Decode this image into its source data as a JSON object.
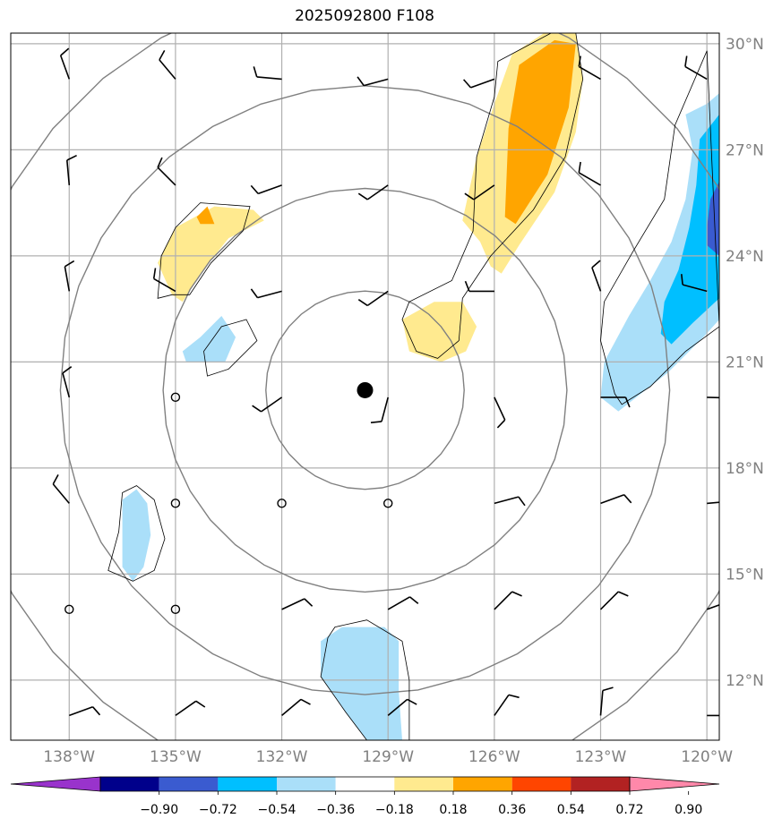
{
  "title": "2025092800 F108",
  "map": {
    "lon_range": [
      -139.65,
      -119.65
    ],
    "lat_range": [
      10.3,
      30.3
    ],
    "lon_ticks": [
      {
        "value": -138,
        "label": "138°W"
      },
      {
        "value": -135,
        "label": "135°W"
      },
      {
        "value": -132,
        "label": "132°W"
      },
      {
        "value": -129,
        "label": "129°W"
      },
      {
        "value": -126,
        "label": "126°W"
      },
      {
        "value": -123,
        "label": "123°W"
      },
      {
        "value": -120,
        "label": "120°W"
      }
    ],
    "lat_ticks": [
      {
        "value": 12,
        "label": "12°N"
      },
      {
        "value": 15,
        "label": "15°N"
      },
      {
        "value": 18,
        "label": "18°N"
      },
      {
        "value": 21,
        "label": "21°N"
      },
      {
        "value": 24,
        "label": "24°N"
      },
      {
        "value": 27,
        "label": "27°N"
      },
      {
        "value": 30,
        "label": "30°N"
      }
    ],
    "grid": true,
    "center": {
      "lon": -129.65,
      "lat": 20.2
    },
    "range_ring_radii_deg": [
      2.8,
      5.7,
      8.6,
      11.5
    ],
    "colors": {
      "grid": "#b0b0b0",
      "ring": "#808080",
      "frame": "#000000"
    }
  },
  "shaded_regions": [
    {
      "color": "#ffea8f",
      "points": [
        [
          -125.5,
          29.7
        ],
        [
          -124.6,
          30.3
        ],
        [
          -123.7,
          30.3
        ],
        [
          -123.5,
          29.0
        ],
        [
          -123.7,
          27.5
        ],
        [
          -124.3,
          25.8
        ],
        [
          -125.3,
          24.3
        ],
        [
          -125.8,
          23.5
        ],
        [
          -126.1,
          23.7
        ],
        [
          -126.4,
          24.4
        ],
        [
          -126.9,
          25.0
        ],
        [
          -126.5,
          26.8
        ],
        [
          -126.0,
          28.3
        ]
      ]
    },
    {
      "color": "#ffa500",
      "points": [
        [
          -125.3,
          29.4
        ],
        [
          -124.3,
          30.1
        ],
        [
          -123.7,
          30.0
        ],
        [
          -123.9,
          28.2
        ],
        [
          -124.5,
          26.3
        ],
        [
          -125.4,
          24.9
        ],
        [
          -125.7,
          25.1
        ],
        [
          -125.6,
          27.6
        ]
      ]
    },
    {
      "color": "#ffea8f",
      "points": [
        [
          -127.7,
          22.7
        ],
        [
          -126.9,
          22.7
        ],
        [
          -126.5,
          22.0
        ],
        [
          -126.8,
          21.3
        ],
        [
          -127.5,
          21.0
        ],
        [
          -128.4,
          21.3
        ],
        [
          -128.6,
          22.2
        ]
      ]
    },
    {
      "color": "#ffea8f",
      "points": [
        [
          -133.9,
          25.4
        ],
        [
          -132.8,
          25.3
        ],
        [
          -132.5,
          25.0
        ],
        [
          -133.5,
          24.5
        ],
        [
          -134.3,
          23.5
        ],
        [
          -134.8,
          22.7
        ],
        [
          -135.1,
          22.9
        ],
        [
          -135.5,
          23.8
        ],
        [
          -135.0,
          24.8
        ]
      ]
    },
    {
      "color": "#ffa500",
      "points": [
        [
          -134.1,
          25.4
        ],
        [
          -133.9,
          24.9
        ],
        [
          -134.3,
          24.9
        ],
        [
          -134.4,
          25.1
        ]
      ]
    },
    {
      "color": "#aadff9",
      "points": [
        [
          -133.7,
          22.3
        ],
        [
          -133.3,
          21.7
        ],
        [
          -133.6,
          21.0
        ],
        [
          -134.7,
          21.0
        ],
        [
          -134.8,
          21.3
        ],
        [
          -134.3,
          21.7
        ]
      ]
    },
    {
      "color": "#aadff9",
      "points": [
        [
          -136.1,
          17.4
        ],
        [
          -135.8,
          17.0
        ],
        [
          -135.7,
          16.1
        ],
        [
          -135.9,
          15.2
        ],
        [
          -136.2,
          14.8
        ],
        [
          -136.5,
          15.2
        ],
        [
          -136.5,
          16.4
        ],
        [
          -136.5,
          17.1
        ]
      ]
    },
    {
      "color": "#aadff9",
      "points": [
        [
          -130.3,
          13.5
        ],
        [
          -129.1,
          13.5
        ],
        [
          -128.7,
          13.1
        ],
        [
          -128.7,
          11.7
        ],
        [
          -128.6,
          10.3
        ],
        [
          -129.6,
          10.3
        ],
        [
          -130.2,
          11.1
        ],
        [
          -130.9,
          12.1
        ],
        [
          -130.9,
          13.1
        ]
      ]
    },
    {
      "color": "#aadff9",
      "points": [
        [
          -120.6,
          28.0
        ],
        [
          -120.0,
          28.3
        ],
        [
          -119.65,
          28.6
        ],
        [
          -119.65,
          22.2
        ],
        [
          -120.1,
          21.7
        ],
        [
          -121.1,
          20.7
        ],
        [
          -122.5,
          19.6
        ],
        [
          -123.0,
          20.0
        ],
        [
          -122.9,
          21.0
        ],
        [
          -122.2,
          22.3
        ],
        [
          -121.6,
          23.3
        ],
        [
          -121.0,
          24.4
        ],
        [
          -120.6,
          25.6
        ],
        [
          -120.4,
          27.0
        ]
      ]
    },
    {
      "color": "#00bfff",
      "points": [
        [
          -120.2,
          27.3
        ],
        [
          -119.65,
          28.0
        ],
        [
          -119.65,
          22.8
        ],
        [
          -120.4,
          22.1
        ],
        [
          -121.0,
          21.5
        ],
        [
          -121.3,
          21.8
        ],
        [
          -121.2,
          22.7
        ],
        [
          -120.8,
          23.6
        ],
        [
          -120.5,
          24.8
        ],
        [
          -120.3,
          26.0
        ]
      ]
    },
    {
      "color": "#3a5bd0",
      "points": [
        [
          -119.65,
          26.1
        ],
        [
          -119.9,
          25.6
        ],
        [
          -120.0,
          24.8
        ],
        [
          -120.0,
          24.3
        ],
        [
          -119.65,
          24.0
        ]
      ]
    }
  ],
  "contours": [
    [
      [
        -125.9,
        29.5
      ],
      [
        -124.4,
        30.3
      ],
      [
        -123.7,
        30.3
      ],
      [
        -123.5,
        29.0
      ],
      [
        -124.0,
        26.8
      ],
      [
        -124.9,
        25.3
      ],
      [
        -126.1,
        24.0
      ],
      [
        -126.9,
        22.8
      ],
      [
        -127.0,
        21.6
      ],
      [
        -127.6,
        21.1
      ],
      [
        -128.2,
        21.3
      ],
      [
        -128.6,
        22.2
      ],
      [
        -128.4,
        22.7
      ],
      [
        -127.2,
        23.3
      ],
      [
        -126.6,
        24.7
      ],
      [
        -126.5,
        26.8
      ],
      [
        -126.0,
        28.5
      ]
    ],
    [
      [
        -134.3,
        25.5
      ],
      [
        -132.9,
        25.4
      ],
      [
        -133.1,
        24.7
      ],
      [
        -134.0,
        23.8
      ],
      [
        -134.6,
        22.9
      ],
      [
        -135.1,
        22.9
      ],
      [
        -135.5,
        22.8
      ],
      [
        -135.4,
        24.0
      ],
      [
        -135.0,
        24.8
      ]
    ],
    [
      [
        -133.0,
        22.2
      ],
      [
        -132.7,
        21.6
      ],
      [
        -133.5,
        20.8
      ],
      [
        -134.1,
        20.6
      ],
      [
        -134.2,
        21.3
      ],
      [
        -133.7,
        22.0
      ]
    ],
    [
      [
        -136.1,
        17.5
      ],
      [
        -135.6,
        17.1
      ],
      [
        -135.3,
        16.0
      ],
      [
        -135.6,
        15.1
      ],
      [
        -136.2,
        14.8
      ],
      [
        -136.9,
        15.1
      ],
      [
        -136.6,
        16.2
      ],
      [
        -136.5,
        17.3
      ]
    ],
    [
      [
        -130.5,
        13.5
      ],
      [
        -129.6,
        13.7
      ],
      [
        -128.6,
        13.1
      ],
      [
        -128.4,
        12.0
      ],
      [
        -128.4,
        10.3
      ],
      [
        -129.6,
        10.3
      ],
      [
        -130.2,
        11.1
      ],
      [
        -130.9,
        12.1
      ],
      [
        -130.7,
        13.2
      ]
    ],
    [
      [
        -120.0,
        29.8
      ],
      [
        -120.9,
        27.7
      ],
      [
        -121.2,
        25.6
      ],
      [
        -122.1,
        24.1
      ],
      [
        -122.9,
        22.7
      ],
      [
        -123.0,
        21.6
      ],
      [
        -122.6,
        20.1
      ],
      [
        -122.4,
        19.8
      ],
      [
        -121.6,
        20.3
      ],
      [
        -120.6,
        21.3
      ],
      [
        -119.65,
        22.0
      ]
    ]
  ],
  "storm_center": {
    "lon": -129.65,
    "lat": 20.2
  },
  "wind_barbs": [
    {
      "lon": -138,
      "lat": 29,
      "dir": 340
    },
    {
      "lon": -135,
      "lat": 29,
      "dir": 320
    },
    {
      "lon": -132,
      "lat": 29,
      "dir": 275
    },
    {
      "lon": -129,
      "lat": 29,
      "dir": 255
    },
    {
      "lon": -126,
      "lat": 29,
      "dir": 250
    },
    {
      "lon": -123,
      "lat": 29,
      "dir": 300
    },
    {
      "lon": -120,
      "lat": 29,
      "dir": 300
    },
    {
      "lon": -138,
      "lat": 26,
      "dir": 355
    },
    {
      "lon": -135,
      "lat": 26,
      "dir": 315
    },
    {
      "lon": -132,
      "lat": 26,
      "dir": 250
    },
    {
      "lon": -129,
      "lat": 26,
      "dir": 235
    },
    {
      "lon": -126,
      "lat": 26,
      "dir": 235
    },
    {
      "lon": -123,
      "lat": 26,
      "dir": 300
    },
    {
      "lon": -138,
      "lat": 23,
      "dir": 350
    },
    {
      "lon": -135,
      "lat": 23,
      "dir": 300
    },
    {
      "lon": -132,
      "lat": 23,
      "dir": 255
    },
    {
      "lon": -129,
      "lat": 23,
      "dir": 235
    },
    {
      "lon": -126,
      "lat": 23,
      "dir": 270
    },
    {
      "lon": -123,
      "lat": 23,
      "dir": 340
    },
    {
      "lon": -120,
      "lat": 23,
      "dir": 285
    },
    {
      "lon": -138,
      "lat": 20,
      "dir": 345
    },
    {
      "lon": -132,
      "lat": 20,
      "dir": 235
    },
    {
      "lon": -129,
      "lat": 20,
      "dir": 195
    },
    {
      "lon": -126,
      "lat": 20,
      "dir": 155
    },
    {
      "lon": -123,
      "lat": 20,
      "dir": 90
    },
    {
      "lon": -120,
      "lat": 20,
      "dir": 92
    },
    {
      "lon": -138,
      "lat": 17,
      "dir": 320
    },
    {
      "lon": -126,
      "lat": 17,
      "dir": 75
    },
    {
      "lon": -123,
      "lat": 17,
      "dir": 70
    },
    {
      "lon": -120,
      "lat": 17,
      "dir": 85
    },
    {
      "lon": -132,
      "lat": 14,
      "dir": 65
    },
    {
      "lon": -129,
      "lat": 14,
      "dir": 60
    },
    {
      "lon": -126,
      "lat": 14,
      "dir": 45
    },
    {
      "lon": -123,
      "lat": 14,
      "dir": 45
    },
    {
      "lon": -120,
      "lat": 14,
      "dir": 70
    },
    {
      "lon": -138,
      "lat": 11,
      "dir": 70
    },
    {
      "lon": -135,
      "lat": 11,
      "dir": 55
    },
    {
      "lon": -132,
      "lat": 11,
      "dir": 50
    },
    {
      "lon": -129,
      "lat": 11,
      "dir": 50
    },
    {
      "lon": -126,
      "lat": 11,
      "dir": 35
    },
    {
      "lon": -123,
      "lat": 11,
      "dir": 5
    },
    {
      "lon": -120,
      "lat": 11,
      "dir": 90
    }
  ],
  "calm_points": [
    {
      "lon": -135,
      "lat": 20
    },
    {
      "lon": -135,
      "lat": 17
    },
    {
      "lon": -132,
      "lat": 17
    },
    {
      "lon": -129,
      "lat": 17
    },
    {
      "lon": -138,
      "lat": 14
    },
    {
      "lon": -135,
      "lat": 14
    }
  ],
  "colorbar": {
    "colors": [
      "#9933cc",
      "#00008b",
      "#3a5bd0",
      "#00bfff",
      "#aadff9",
      "#ffffff",
      "#ffea8f",
      "#ffa500",
      "#ff4500",
      "#b22222",
      "#ff88aa"
    ],
    "ticks": [
      "−0.90",
      "−0.72",
      "−0.54",
      "−0.36",
      "−0.18",
      "0.18",
      "0.36",
      "0.54",
      "0.72",
      "0.90"
    ]
  }
}
